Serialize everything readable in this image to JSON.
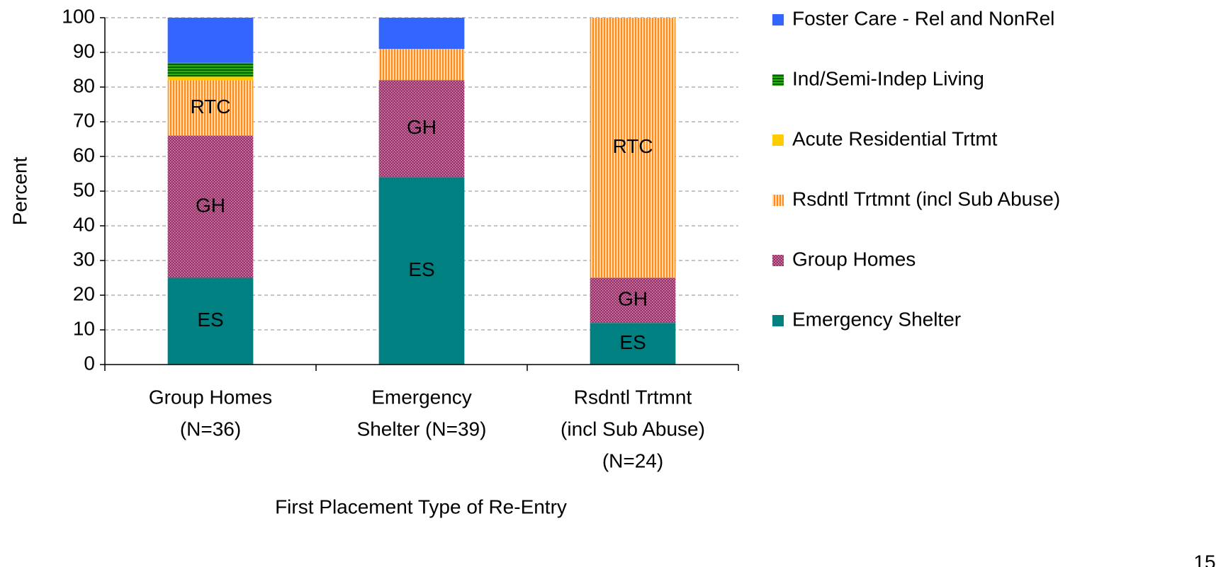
{
  "chart_data": {
    "type": "stacked_bar",
    "y_label": "Percent",
    "x_label": "First Placement Type of Re-Entry",
    "page_number": "15",
    "categories": [
      [
        "Group Homes",
        "(N=36)"
      ],
      [
        "Emergency",
        "Shelter (N=39)"
      ],
      [
        "Rsdntl Trtmnt",
        "(incl Sub Abuse)",
        "(N=24)"
      ]
    ],
    "series": [
      {
        "name": "Emergency Shelter",
        "color": "#008080",
        "pattern": "solid",
        "values": [
          25,
          54,
          12
        ],
        "labels": [
          "ES",
          "ES",
          "ES"
        ]
      },
      {
        "name": "Group Homes",
        "color": "#993366",
        "pattern": "dots",
        "values": [
          41,
          28,
          13
        ],
        "labels": [
          "GH",
          "GH",
          "GH"
        ]
      },
      {
        "name": "Rsdntl Trtmnt (incl Sub Abuse)",
        "color": "#ff8c1a",
        "pattern": "vstripes",
        "values": [
          16,
          9,
          75
        ],
        "labels": [
          "RTC",
          null,
          "RTC"
        ]
      },
      {
        "name": "Acute Residential Trtmt",
        "color": "#ffcc00",
        "pattern": "solid",
        "values": [
          1,
          0,
          0
        ]
      },
      {
        "name": "Ind/Semi-Indep Living",
        "color": "#33aa11",
        "pattern": "hstripes",
        "values": [
          4,
          0,
          0
        ]
      },
      {
        "name": "Foster Care - Rel and NonRel",
        "color": "#3366ff",
        "pattern": "solid",
        "values": [
          13,
          9,
          0
        ]
      }
    ],
    "ylim": [
      0,
      100
    ],
    "yticks": [
      0,
      10,
      20,
      30,
      40,
      50,
      60,
      70,
      80,
      90,
      100
    ],
    "grid": true,
    "legend": "right"
  }
}
